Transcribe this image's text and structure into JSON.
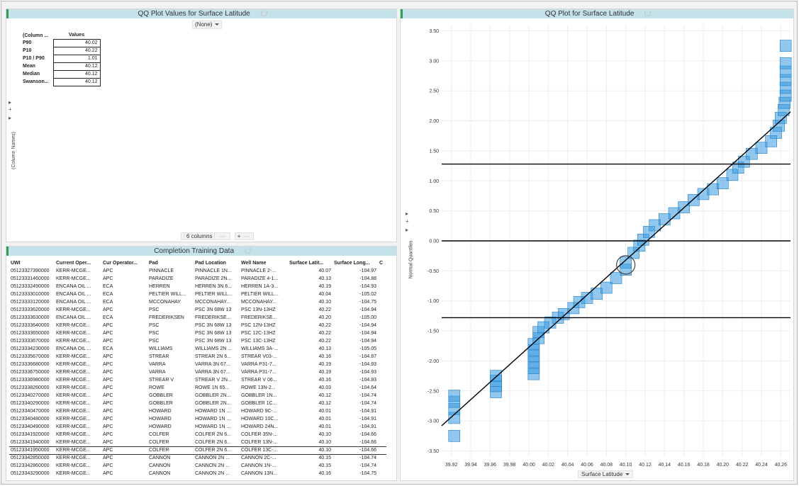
{
  "values_panel": {
    "title": "QQ Plot Values for Surface Latitude",
    "filter_value": "(None)",
    "col_header_name": "(Column ...",
    "col_header_values": "Values",
    "rows": [
      {
        "label": "P90",
        "value": "40.02"
      },
      {
        "label": "P10",
        "value": "40.22"
      },
      {
        "label": "P10 / P90",
        "value": "1.01"
      },
      {
        "label": "Mean",
        "value": "40.12"
      },
      {
        "label": "Median",
        "value": "40.12"
      },
      {
        "label": "Swanson...",
        "value": "40.12"
      }
    ],
    "side_label": "(Column Names)",
    "columns_control": "6 columns"
  },
  "table_panel": {
    "title": "Completion Training Data",
    "headers": [
      "UWI",
      "Current Oper...",
      "Cur Operator...",
      "Pad",
      "Pad Location",
      "Well Name",
      "Surface Latit...",
      "Surface Long...",
      "C"
    ],
    "rows": [
      [
        "05123327390000",
        "KERR-MCGE...",
        "APC",
        "PINNACLE",
        "PINNACLE 1N...",
        "PINNACLE 2-...",
        "40.07",
        "-104.97"
      ],
      [
        "05123331460000",
        "KERR-MCGE...",
        "APC",
        "PARADIZE",
        "PARADIZE 2N...",
        "PARADIZE 4-1...",
        "40.13",
        "-104.88"
      ],
      [
        "05123332490000",
        "ENCANA OIL ...",
        "ECA",
        "HERREN",
        "HERREN 3N 6...",
        "HERREN 1A-3...",
        "40.19",
        "-104.93"
      ],
      [
        "05123333010000",
        "ENCANA OIL ...",
        "ECA",
        "PELTIER WILL...",
        "PELTIER WILL...",
        "PELTIER WILL...",
        "40.04",
        "-105.02"
      ],
      [
        "05123333120000",
        "ENCANA OIL ...",
        "ECA",
        "MCCONAHAY",
        "MCCONAHAY...",
        "MCCONAHAY...",
        "40.10",
        "-104.75"
      ],
      [
        "05123333620000",
        "KERR-MCGE...",
        "APC",
        "PSC",
        "PSC 3N 68W 13",
        "PSC 13N-13HZ",
        "40.22",
        "-104.94"
      ],
      [
        "05123333630000",
        "ENCANA OIL ...",
        "ECA",
        "FREDERIKSEN",
        "FREDERIKSE...",
        "FREDERIKSE...",
        "40.20",
        "-105.00"
      ],
      [
        "05123333640000",
        "KERR-MCGE...",
        "APC",
        "PSC",
        "PSC 3N 68W 13",
        "PSC 12N-13HZ",
        "40.22",
        "-104.94"
      ],
      [
        "05123333650000",
        "KERR-MCGE...",
        "APC",
        "PSC",
        "PSC 3N 68W 13",
        "PSC 12C-13HZ",
        "40.22",
        "-104.94"
      ],
      [
        "05123333670000",
        "KERR-MCGE...",
        "APC",
        "PSC",
        "PSC 3N 68W 13",
        "PSC 13C-13HZ",
        "40.22",
        "-104.94"
      ],
      [
        "05123334230000",
        "ENCANA OIL ...",
        "ECA",
        "WILLIAMS",
        "WILLIAMS 2N ...",
        "WILLIAMS 3A-...",
        "40.13",
        "-105.05"
      ],
      [
        "05123335670000",
        "KERR-MCGE...",
        "APC",
        "STREAR",
        "STREAR 2N 6...",
        "STREAR V03-...",
        "40.16",
        "-104.87"
      ],
      [
        "05123336680000",
        "KERR-MCGE...",
        "APC",
        "VARRA",
        "VARRA 3N 67...",
        "VARRA P31-7...",
        "40.19",
        "-104.93"
      ],
      [
        "05123336750000",
        "KERR-MCGE...",
        "APC",
        "VARRA",
        "VARRA 3N 67...",
        "VARRA P31-7...",
        "40.19",
        "-104.93"
      ],
      [
        "05123336980000",
        "KERR-MCGE...",
        "APC",
        "STREAR V",
        "STREAR V 2N...",
        "STREAR V 06...",
        "40.16",
        "-104.93"
      ],
      [
        "05123338260000",
        "KERR-MCGE...",
        "APC",
        "ROWE",
        "ROWE 1N 65...",
        "ROWE 13N-2...",
        "40.03",
        "-104.64"
      ],
      [
        "05123340270000",
        "KERR-MCGE...",
        "APC",
        "GOBBLER",
        "GOBBLER 2N...",
        "GOBBLER 1N...",
        "40.12",
        "-104.74"
      ],
      [
        "05123340290000",
        "KERR-MCGE...",
        "APC",
        "GOBBLER",
        "GOBBLER 2N...",
        "GOBBLER 1C...",
        "40.12",
        "-104.74"
      ],
      [
        "05123340470000",
        "KERR-MCGE...",
        "APC",
        "HOWARD",
        "HOWARD 1N ...",
        "HOWARD 9C-...",
        "40.01",
        "-104.91"
      ],
      [
        "05123340480000",
        "KERR-MCGE...",
        "APC",
        "HOWARD",
        "HOWARD 1N ...",
        "HOWARD 10C...",
        "40.01",
        "-104.91"
      ],
      [
        "05123340490000",
        "KERR-MCGE...",
        "APC",
        "HOWARD",
        "HOWARD 1N ...",
        "HOWARD 24N...",
        "40.01",
        "-104.91"
      ],
      [
        "05123341920000",
        "KERR-MCGE...",
        "APC",
        "COLFER",
        "COLFER 2N 6...",
        "COLFER 35N-...",
        "40.10",
        "-104.66"
      ],
      [
        "05123341940000",
        "KERR-MCGE...",
        "APC",
        "COLFER",
        "COLFER 2N 6...",
        "COLFER 13N-...",
        "40.10",
        "-104.66"
      ],
      [
        "05123341950000",
        "KERR-MCGE...",
        "APC",
        "COLFER",
        "COLFER 2N 6...",
        "COLFER 13C-...",
        "40.10",
        "-104.66"
      ],
      [
        "05123342850000",
        "KERR-MCGE...",
        "APC",
        "CANNON",
        "CANNON 2N ...",
        "CANNON 2C-...",
        "40.15",
        "-104.74"
      ],
      [
        "05123342860000",
        "KERR-MCGE...",
        "APC",
        "CANNON",
        "CANNON 2N ...",
        "CANNON 1N-...",
        "40.15",
        "-104.74"
      ],
      [
        "05123343290000",
        "KERR-MCGE...",
        "APC",
        "CANNON",
        "CANNON 2N ...",
        "CANNON 13N...",
        "40.16",
        "-104.75"
      ]
    ],
    "selected_row": 23
  },
  "plot_panel": {
    "title": "QQ Plot for Surface Latitude",
    "x_axis_control": "Surface Latitude"
  },
  "chart_data": {
    "type": "scatter",
    "title": "QQ Plot for Surface Latitude",
    "xlabel": "Surface Latitude",
    "ylabel": "Normal Quantiles",
    "xlim": [
      39.91,
      40.27
    ],
    "ylim": [
      -3.6,
      3.6
    ],
    "x_ticks": [
      "39.92",
      "39.94",
      "39.96",
      "39.98",
      "40.00",
      "40.02",
      "40.04",
      "40.06",
      "40.08",
      "40.10",
      "40.12",
      "40.14",
      "40.16",
      "40.18",
      "40.20",
      "40.22",
      "40.24",
      "40.26"
    ],
    "y_ticks": [
      "3.50",
      "3.00",
      "2.50",
      "2.00",
      "1.50",
      "1.00",
      "0.50",
      "0.00",
      "-0.50",
      "-1.00",
      "-1.50",
      "-2.00",
      "-2.50",
      "-3.00",
      "-3.50"
    ],
    "marker_color": "#3a9be0",
    "grid": true,
    "reference_hlines": [
      1.28,
      0.0,
      -1.28
    ],
    "fit_line": {
      "x": [
        39.91,
        40.27
      ],
      "y": [
        -3.08,
        2.15
      ]
    },
    "highlighted_point": {
      "x": 40.1,
      "y": -0.4
    },
    "points": [
      {
        "x": 39.923,
        "y": -3.25
      },
      {
        "x": 39.923,
        "y": -2.95
      },
      {
        "x": 39.923,
        "y": -2.8
      },
      {
        "x": 39.923,
        "y": -2.68
      },
      {
        "x": 39.923,
        "y": -2.58
      },
      {
        "x": 39.966,
        "y": -2.52
      },
      {
        "x": 39.966,
        "y": -2.42
      },
      {
        "x": 39.966,
        "y": -2.33
      },
      {
        "x": 39.966,
        "y": -2.25
      },
      {
        "x": 40.005,
        "y": -2.22
      },
      {
        "x": 40.005,
        "y": -2.12
      },
      {
        "x": 40.005,
        "y": -2.02
      },
      {
        "x": 40.005,
        "y": -1.92
      },
      {
        "x": 40.005,
        "y": -1.82
      },
      {
        "x": 40.005,
        "y": -1.72
      },
      {
        "x": 40.01,
        "y": -1.62
      },
      {
        "x": 40.01,
        "y": -1.52
      },
      {
        "x": 40.015,
        "y": -1.44
      },
      {
        "x": 40.022,
        "y": -1.36
      },
      {
        "x": 40.03,
        "y": -1.28
      },
      {
        "x": 40.036,
        "y": -1.22
      },
      {
        "x": 40.046,
        "y": -1.12
      },
      {
        "x": 40.052,
        "y": -1.02
      },
      {
        "x": 40.06,
        "y": -0.95
      },
      {
        "x": 40.07,
        "y": -0.88
      },
      {
        "x": 40.08,
        "y": -0.78
      },
      {
        "x": 40.09,
        "y": -0.62
      },
      {
        "x": 40.1,
        "y": -0.48
      },
      {
        "x": 40.1,
        "y": -0.36
      },
      {
        "x": 40.108,
        "y": -0.2
      },
      {
        "x": 40.114,
        "y": -0.08
      },
      {
        "x": 40.118,
        "y": 0.02
      },
      {
        "x": 40.124,
        "y": 0.15
      },
      {
        "x": 40.13,
        "y": 0.26
      },
      {
        "x": 40.14,
        "y": 0.36
      },
      {
        "x": 40.15,
        "y": 0.46
      },
      {
        "x": 40.16,
        "y": 0.56
      },
      {
        "x": 40.17,
        "y": 0.68
      },
      {
        "x": 40.18,
        "y": 0.78
      },
      {
        "x": 40.19,
        "y": 0.86
      },
      {
        "x": 40.2,
        "y": 0.96
      },
      {
        "x": 40.21,
        "y": 1.1
      },
      {
        "x": 40.216,
        "y": 1.22
      },
      {
        "x": 40.222,
        "y": 1.32
      },
      {
        "x": 40.23,
        "y": 1.45
      },
      {
        "x": 40.24,
        "y": 1.55
      },
      {
        "x": 40.25,
        "y": 1.66
      },
      {
        "x": 40.255,
        "y": 1.8
      },
      {
        "x": 40.258,
        "y": 1.92
      },
      {
        "x": 40.26,
        "y": 2.05
      },
      {
        "x": 40.263,
        "y": 2.18
      },
      {
        "x": 40.264,
        "y": 2.3
      },
      {
        "x": 40.265,
        "y": 2.42
      },
      {
        "x": 40.265,
        "y": 2.55
      },
      {
        "x": 40.265,
        "y": 2.68
      },
      {
        "x": 40.265,
        "y": 2.82
      },
      {
        "x": 40.265,
        "y": 2.96
      },
      {
        "x": 40.265,
        "y": 3.25
      }
    ]
  }
}
